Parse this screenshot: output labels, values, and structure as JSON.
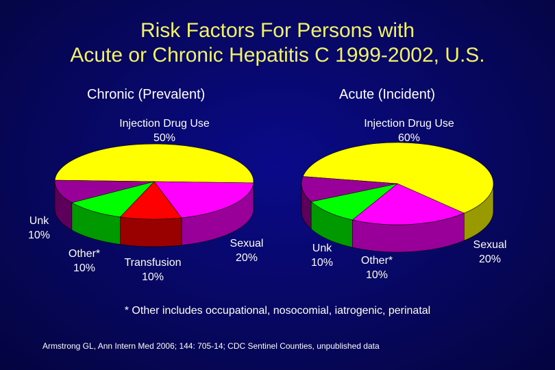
{
  "title": {
    "line1": "Risk Factors For Persons with",
    "line2": "Acute or Chronic Hepatitis C 1999-2002, U.S."
  },
  "chart_data": [
    {
      "type": "pie",
      "title": "Chronic (Prevalent)",
      "slices": [
        {
          "name": "Injection Drug Use",
          "value": 50,
          "label": "50%",
          "color": "#ffff00"
        },
        {
          "name": "Sexual",
          "value": 20,
          "label": "20%",
          "color": "#ff00ff"
        },
        {
          "name": "Transfusion",
          "value": 10,
          "label": "10%",
          "color": "#ff0000"
        },
        {
          "name": "Other*",
          "value": 10,
          "label": "10%",
          "color": "#00ff00"
        },
        {
          "name": "Unk",
          "value": 10,
          "label": "10%",
          "color": "#990099"
        }
      ]
    },
    {
      "type": "pie",
      "title": "Acute (Incident)",
      "slices": [
        {
          "name": "Injection Drug Use",
          "value": 60,
          "label": "60%",
          "color": "#ffff00"
        },
        {
          "name": "Sexual",
          "value": 20,
          "label": "20%",
          "color": "#ff00ff"
        },
        {
          "name": "Other*",
          "value": 10,
          "label": "10%",
          "color": "#00ff00"
        },
        {
          "name": "Unk",
          "value": 10,
          "label": "10%",
          "color": "#990099"
        }
      ]
    }
  ],
  "footnote": "* Other includes occupational, nosocomial, iatrogenic, perinatal",
  "citation": "Armstrong GL, Ann Intern Med 2006; 144: 705-14; CDC Sentinel Counties, unpublished data"
}
